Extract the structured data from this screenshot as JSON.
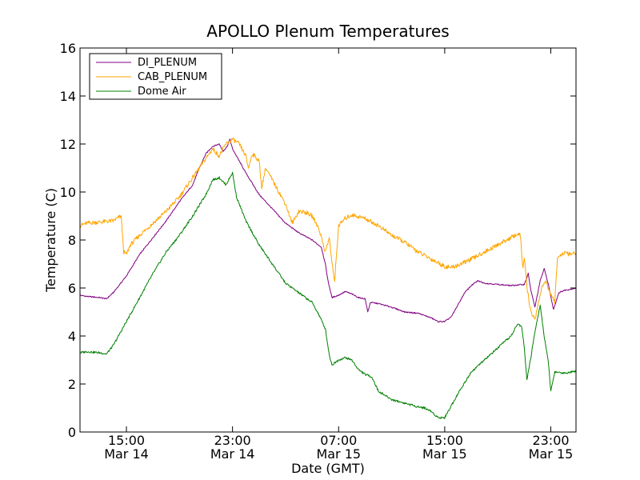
{
  "chart_data": {
    "type": "line",
    "title": "APOLLO Plenum Temperatures",
    "xlabel": "Date (GMT)",
    "ylabel": "Temperature (C)",
    "grid": false,
    "legend_position": "top-left",
    "x_unit": "hours since Mar 14 00:00 GMT",
    "xlim": [
      11.5,
      48.9
    ],
    "ylim": [
      0,
      16
    ],
    "y_ticks": [
      {
        "value": 0,
        "label": "0"
      },
      {
        "value": 2,
        "label": "2"
      },
      {
        "value": 4,
        "label": "4"
      },
      {
        "value": 6,
        "label": "6"
      },
      {
        "value": 8,
        "label": "8"
      },
      {
        "value": 10,
        "label": "10"
      },
      {
        "value": 12,
        "label": "12"
      },
      {
        "value": 14,
        "label": "14"
      },
      {
        "value": 16,
        "label": "16"
      }
    ],
    "x_ticks": [
      {
        "value": 15,
        "time": "15:00",
        "date": "Mar 14"
      },
      {
        "value": 23,
        "time": "23:00",
        "date": "Mar 14"
      },
      {
        "value": 31,
        "time": "07:00",
        "date": "Mar 15"
      },
      {
        "value": 39,
        "time": "15:00",
        "date": "Mar 15"
      },
      {
        "value": 47,
        "time": "23:00",
        "date": "Mar 15"
      }
    ],
    "series": [
      {
        "name": "DI_PLENUM",
        "color": "#800080",
        "points": [
          [
            11.5,
            5.7
          ],
          [
            12.0,
            5.65
          ],
          [
            13.0,
            5.6
          ],
          [
            13.5,
            5.55
          ],
          [
            14.0,
            5.8
          ],
          [
            15.0,
            6.5
          ],
          [
            16.0,
            7.4
          ],
          [
            17.0,
            8.1
          ],
          [
            18.0,
            8.8
          ],
          [
            19.0,
            9.6
          ],
          [
            20.0,
            10.3
          ],
          [
            20.5,
            11.0
          ],
          [
            21.0,
            11.6
          ],
          [
            21.5,
            11.9
          ],
          [
            22.0,
            12.0
          ],
          [
            22.3,
            11.7
          ],
          [
            22.6,
            11.9
          ],
          [
            22.8,
            12.2
          ],
          [
            23.0,
            11.8
          ],
          [
            24.0,
            10.8
          ],
          [
            25.0,
            9.9
          ],
          [
            26.0,
            9.3
          ],
          [
            27.0,
            8.7
          ],
          [
            28.0,
            8.3
          ],
          [
            29.0,
            8.0
          ],
          [
            29.7,
            7.7
          ],
          [
            30.0,
            7.0
          ],
          [
            30.2,
            6.3
          ],
          [
            30.5,
            5.6
          ],
          [
            31.0,
            5.7
          ],
          [
            31.5,
            5.85
          ],
          [
            32.0,
            5.75
          ],
          [
            32.5,
            5.6
          ],
          [
            33.0,
            5.55
          ],
          [
            33.2,
            5.0
          ],
          [
            33.4,
            5.4
          ],
          [
            34.0,
            5.35
          ],
          [
            35.0,
            5.2
          ],
          [
            36.0,
            5.0
          ],
          [
            37.0,
            4.95
          ],
          [
            38.0,
            4.75
          ],
          [
            38.5,
            4.6
          ],
          [
            39.0,
            4.6
          ],
          [
            39.5,
            4.8
          ],
          [
            40.0,
            5.3
          ],
          [
            40.5,
            5.8
          ],
          [
            41.0,
            6.1
          ],
          [
            41.5,
            6.3
          ],
          [
            42.0,
            6.2
          ],
          [
            43.0,
            6.15
          ],
          [
            44.0,
            6.1
          ],
          [
            45.0,
            6.15
          ],
          [
            45.3,
            6.6
          ],
          [
            45.5,
            5.9
          ],
          [
            45.8,
            5.2
          ],
          [
            46.2,
            6.3
          ],
          [
            46.5,
            6.8
          ],
          [
            46.8,
            6.2
          ],
          [
            47.2,
            5.1
          ],
          [
            47.6,
            5.8
          ],
          [
            48.0,
            5.9
          ],
          [
            48.5,
            5.95
          ],
          [
            48.9,
            6.0
          ]
        ]
      },
      {
        "name": "CAB_PLENUM",
        "color": "#FFA500",
        "points": [
          [
            11.5,
            8.6
          ],
          [
            12.0,
            8.7
          ],
          [
            13.0,
            8.75
          ],
          [
            14.0,
            8.8
          ],
          [
            14.6,
            9.0
          ],
          [
            14.8,
            7.5
          ],
          [
            15.0,
            7.4
          ],
          [
            15.3,
            7.8
          ],
          [
            16.0,
            8.2
          ],
          [
            17.0,
            8.7
          ],
          [
            18.0,
            9.2
          ],
          [
            19.0,
            9.8
          ],
          [
            20.0,
            10.6
          ],
          [
            21.0,
            11.4
          ],
          [
            21.5,
            11.8
          ],
          [
            22.0,
            11.5
          ],
          [
            22.5,
            12.0
          ],
          [
            23.0,
            12.2
          ],
          [
            23.5,
            12.0
          ],
          [
            24.0,
            11.5
          ],
          [
            24.2,
            11.0
          ],
          [
            24.5,
            11.6
          ],
          [
            25.0,
            11.3
          ],
          [
            25.2,
            10.2
          ],
          [
            25.5,
            11.0
          ],
          [
            26.0,
            10.5
          ],
          [
            26.5,
            10.0
          ],
          [
            27.0,
            9.5
          ],
          [
            27.5,
            8.7
          ],
          [
            28.0,
            9.2
          ],
          [
            28.5,
            9.15
          ],
          [
            29.0,
            9.0
          ],
          [
            29.5,
            8.5
          ],
          [
            30.0,
            7.5
          ],
          [
            30.3,
            8.1
          ],
          [
            30.5,
            7.0
          ],
          [
            30.7,
            6.3
          ],
          [
            31.0,
            8.6
          ],
          [
            31.5,
            8.9
          ],
          [
            32.0,
            9.05
          ],
          [
            33.0,
            8.9
          ],
          [
            34.0,
            8.6
          ],
          [
            35.0,
            8.2
          ],
          [
            36.0,
            7.9
          ],
          [
            37.0,
            7.5
          ],
          [
            38.0,
            7.2
          ],
          [
            39.0,
            6.9
          ],
          [
            39.5,
            6.85
          ],
          [
            40.0,
            6.95
          ],
          [
            41.0,
            7.2
          ],
          [
            42.0,
            7.5
          ],
          [
            43.0,
            7.8
          ],
          [
            44.0,
            8.1
          ],
          [
            44.5,
            8.25
          ],
          [
            44.7,
            8.2
          ],
          [
            44.9,
            6.8
          ],
          [
            45.0,
            7.3
          ],
          [
            45.2,
            6.0
          ],
          [
            45.5,
            5.0
          ],
          [
            45.8,
            4.7
          ],
          [
            46.0,
            5.2
          ],
          [
            46.3,
            6.0
          ],
          [
            46.6,
            6.3
          ],
          [
            47.0,
            5.7
          ],
          [
            47.3,
            5.4
          ],
          [
            47.5,
            7.3
          ],
          [
            48.0,
            7.45
          ],
          [
            48.5,
            7.4
          ],
          [
            48.9,
            7.45
          ]
        ]
      },
      {
        "name": "Dome Air",
        "color": "#008000",
        "points": [
          [
            11.5,
            3.3
          ],
          [
            12.0,
            3.35
          ],
          [
            13.0,
            3.3
          ],
          [
            13.5,
            3.25
          ],
          [
            14.0,
            3.6
          ],
          [
            15.0,
            4.6
          ],
          [
            16.0,
            5.6
          ],
          [
            17.0,
            6.6
          ],
          [
            18.0,
            7.5
          ],
          [
            19.0,
            8.2
          ],
          [
            20.0,
            9.0
          ],
          [
            21.0,
            9.9
          ],
          [
            21.5,
            10.5
          ],
          [
            22.0,
            10.6
          ],
          [
            22.5,
            10.3
          ],
          [
            23.0,
            10.8
          ],
          [
            23.3,
            9.8
          ],
          [
            24.0,
            8.8
          ],
          [
            25.0,
            7.8
          ],
          [
            26.0,
            7.0
          ],
          [
            27.0,
            6.2
          ],
          [
            28.0,
            5.8
          ],
          [
            29.0,
            5.4
          ],
          [
            29.5,
            4.9
          ],
          [
            30.0,
            4.3
          ],
          [
            30.3,
            3.2
          ],
          [
            30.5,
            2.8
          ],
          [
            31.0,
            3.0
          ],
          [
            31.5,
            3.1
          ],
          [
            32.0,
            3.0
          ],
          [
            32.5,
            2.6
          ],
          [
            33.0,
            2.4
          ],
          [
            33.5,
            2.3
          ],
          [
            34.0,
            1.7
          ],
          [
            35.0,
            1.35
          ],
          [
            36.0,
            1.2
          ],
          [
            37.0,
            1.05
          ],
          [
            37.5,
            1.0
          ],
          [
            38.0,
            0.85
          ],
          [
            38.5,
            0.6
          ],
          [
            39.0,
            0.6
          ],
          [
            39.5,
            1.1
          ],
          [
            40.0,
            1.6
          ],
          [
            41.0,
            2.5
          ],
          [
            42.0,
            3.0
          ],
          [
            43.0,
            3.5
          ],
          [
            44.0,
            4.0
          ],
          [
            44.5,
            4.5
          ],
          [
            44.8,
            4.4
          ],
          [
            45.0,
            3.5
          ],
          [
            45.2,
            2.2
          ],
          [
            45.5,
            3.1
          ],
          [
            45.8,
            4.2
          ],
          [
            46.2,
            5.3
          ],
          [
            46.5,
            4.0
          ],
          [
            46.8,
            3.0
          ],
          [
            47.0,
            1.7
          ],
          [
            47.3,
            2.5
          ],
          [
            48.0,
            2.45
          ],
          [
            48.5,
            2.5
          ],
          [
            48.9,
            2.55
          ]
        ]
      }
    ]
  }
}
